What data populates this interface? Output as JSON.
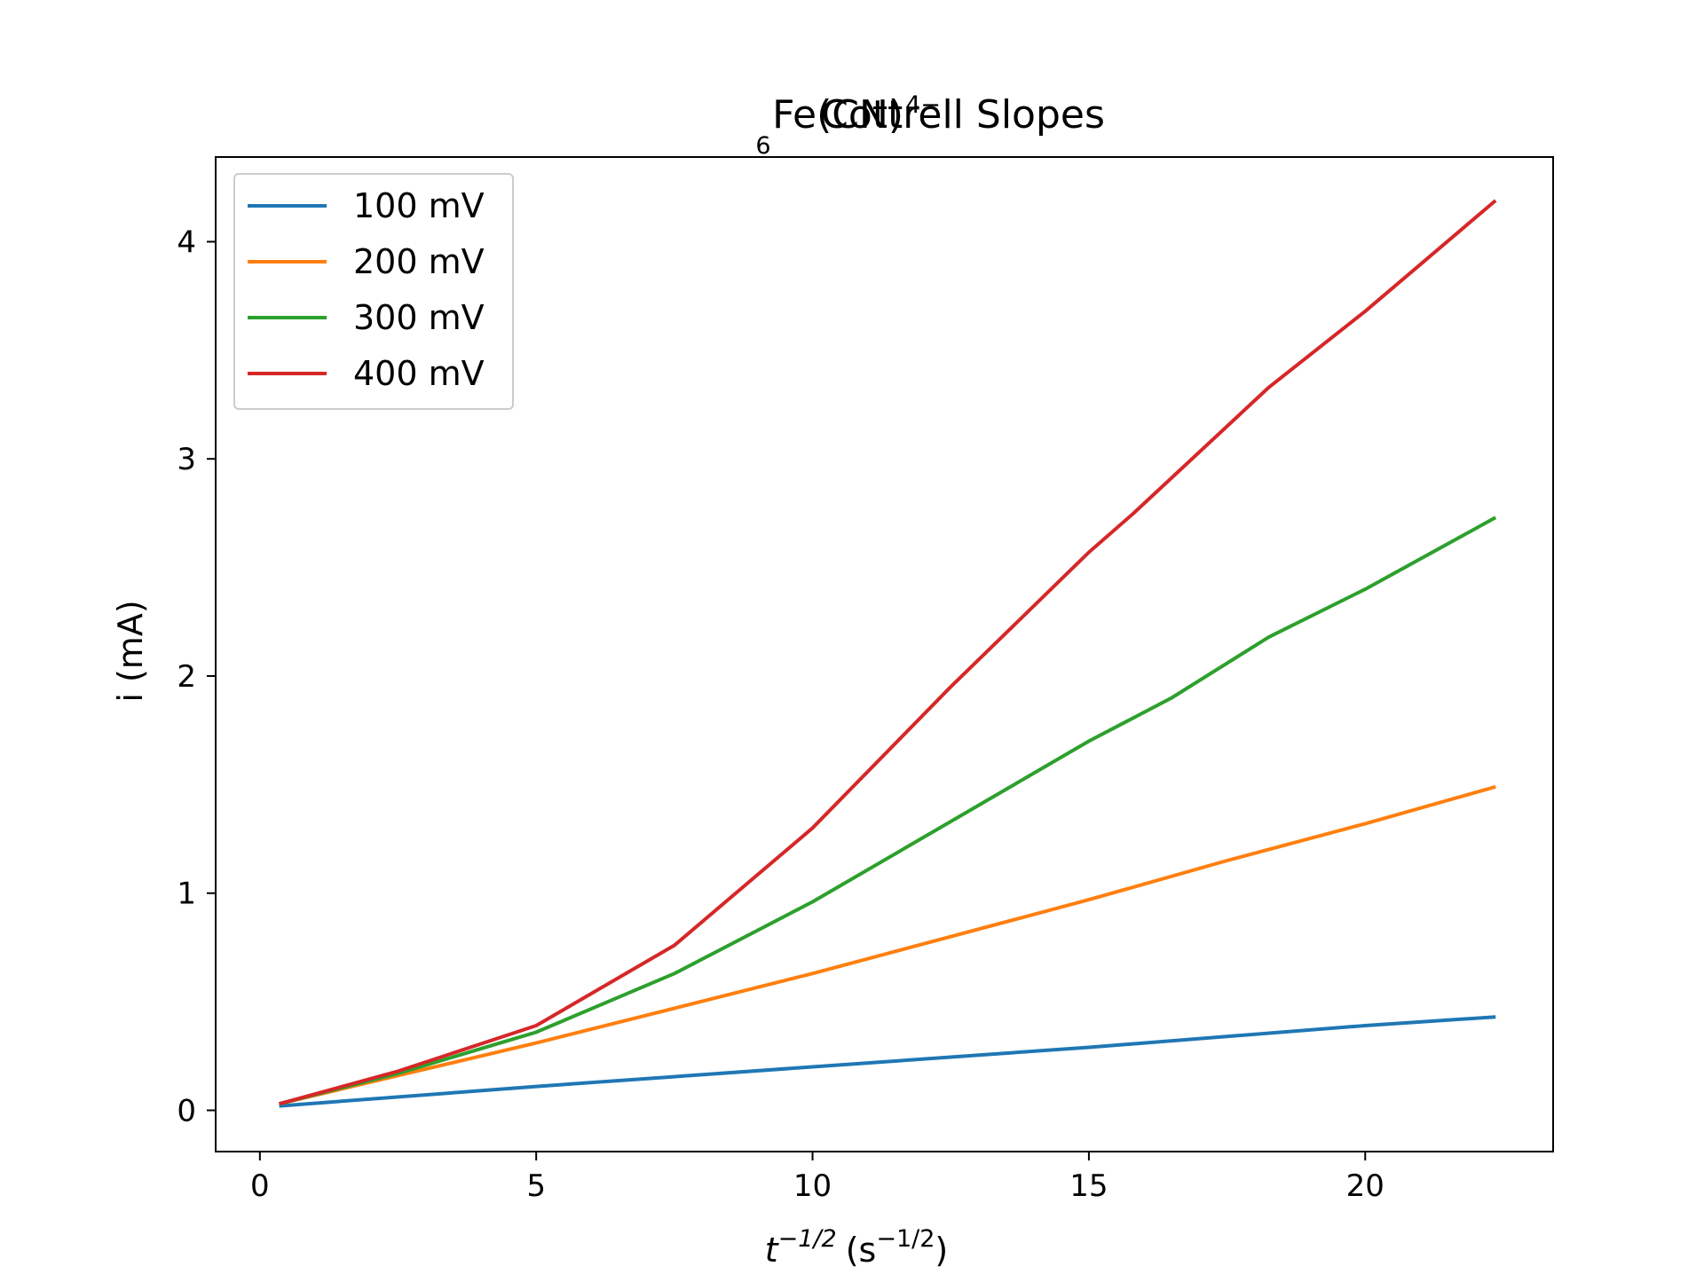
{
  "chart_data": {
    "type": "line",
    "title": {
      "main": "Fe(CN)",
      "subscript": "6",
      "superscript": "4−",
      "rest": "Cottrell Slopes"
    },
    "xlabel": {
      "var": "t",
      "var_exp": "−1/2",
      "unit_open": "(s",
      "unit_exp": "−1/2",
      "unit_close": ")"
    },
    "ylabel": "i (mA)",
    "xlim": [
      -0.8,
      23.4
    ],
    "ylim": [
      -0.19,
      4.39
    ],
    "x_ticks": [
      0,
      5,
      10,
      15,
      20
    ],
    "x_tick_labels": [
      "0",
      "5",
      "10",
      "15",
      "20"
    ],
    "y_ticks": [
      0,
      1,
      2,
      3,
      4
    ],
    "y_tick_labels": [
      "0",
      "1",
      "2",
      "3",
      "4"
    ],
    "grid": false,
    "legend_position": "upper-left",
    "series": [
      {
        "name": "100 mV",
        "color": "#1f77b4",
        "x": [
          0.35,
          5,
          10,
          15,
          20,
          22.36
        ],
        "y": [
          0.02,
          0.11,
          0.2,
          0.29,
          0.39,
          0.43
        ]
      },
      {
        "name": "200 mV",
        "color": "#ff7f0e",
        "x": [
          0.35,
          2.5,
          5,
          7.5,
          10,
          12.5,
          15,
          17.5,
          20,
          22.36
        ],
        "y": [
          0.03,
          0.16,
          0.31,
          0.47,
          0.63,
          0.8,
          0.97,
          1.15,
          1.32,
          1.49
        ]
      },
      {
        "name": "300 mV",
        "color": "#2ca02c",
        "x": [
          0.35,
          2.5,
          5,
          7.5,
          10,
          12.5,
          15,
          16.5,
          18.26,
          20,
          22.36
        ],
        "y": [
          0.03,
          0.17,
          0.36,
          0.63,
          0.96,
          1.33,
          1.7,
          1.9,
          2.18,
          2.4,
          2.73
        ]
      },
      {
        "name": "400 mV",
        "color": "#d62728",
        "x": [
          0.35,
          2.5,
          5,
          7.5,
          10,
          12.5,
          15,
          15.81,
          18.26,
          20,
          22.36
        ],
        "y": [
          0.03,
          0.18,
          0.39,
          0.76,
          1.3,
          1.95,
          2.57,
          2.75,
          3.33,
          3.68,
          4.19
        ]
      }
    ]
  }
}
